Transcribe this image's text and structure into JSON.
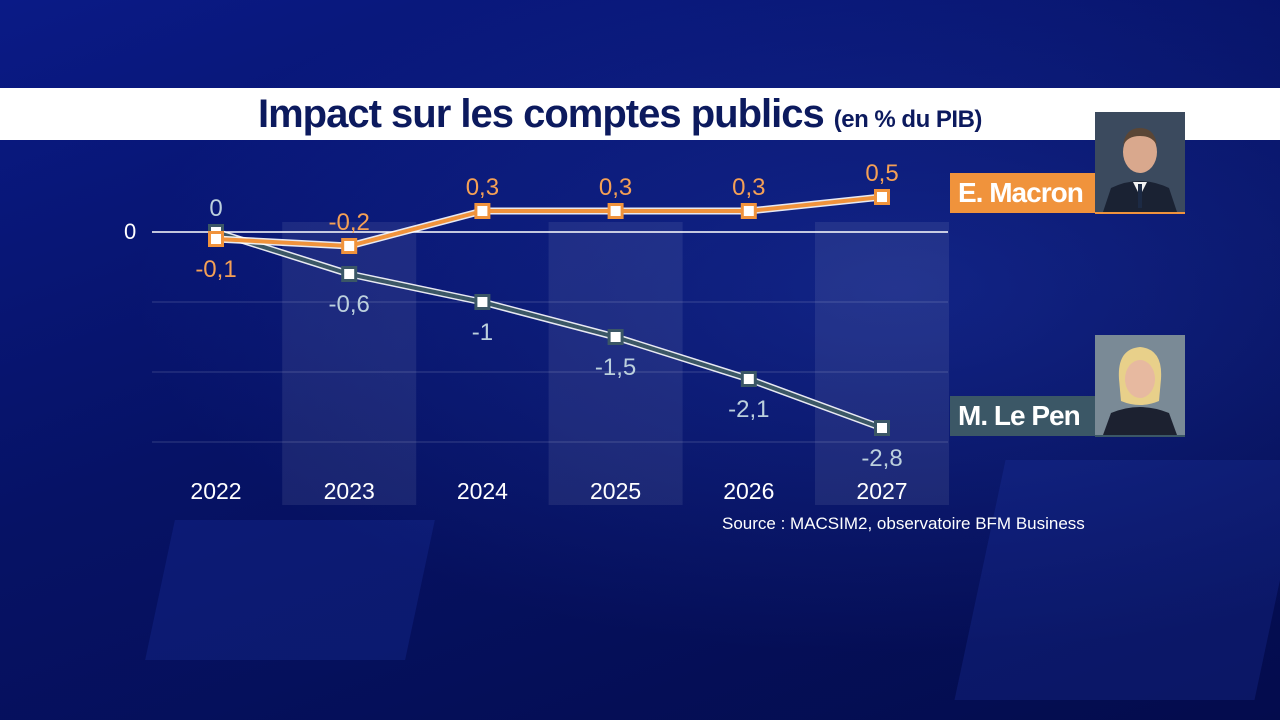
{
  "header": {
    "title": "Impact sur les comptes publics",
    "subtitle": "(en % du PIB)"
  },
  "legend": {
    "macron": "E. Macron",
    "lepen": "M. Le Pen"
  },
  "source": "Source : MACSIM2, observatoire BFM Business",
  "colors": {
    "macron": "#f0933c",
    "lepen": "#3b5766",
    "background": "#071468",
    "title_text": "#0c1a5e"
  },
  "chart_data": {
    "type": "line",
    "x": [
      "2022",
      "2023",
      "2024",
      "2025",
      "2026",
      "2027"
    ],
    "ylim": [
      -3,
      1.2
    ],
    "y_ticks": [
      {
        "value": 0,
        "label": "0"
      }
    ],
    "grid": true,
    "series": [
      {
        "name": "E. Macron",
        "values": [
          -0.1,
          -0.2,
          0.3,
          0.3,
          0.3,
          0.5
        ],
        "labels": [
          "-0,1",
          "-0,2",
          "0,3",
          "0,3",
          "0,3",
          "0,5"
        ]
      },
      {
        "name": "M. Le Pen",
        "values": [
          0,
          -0.6,
          -1,
          -1.5,
          -2.1,
          -2.8
        ],
        "labels": [
          "0",
          "-0,6",
          "-1",
          "-1,5",
          "-2,1",
          "-2,8"
        ]
      }
    ]
  }
}
